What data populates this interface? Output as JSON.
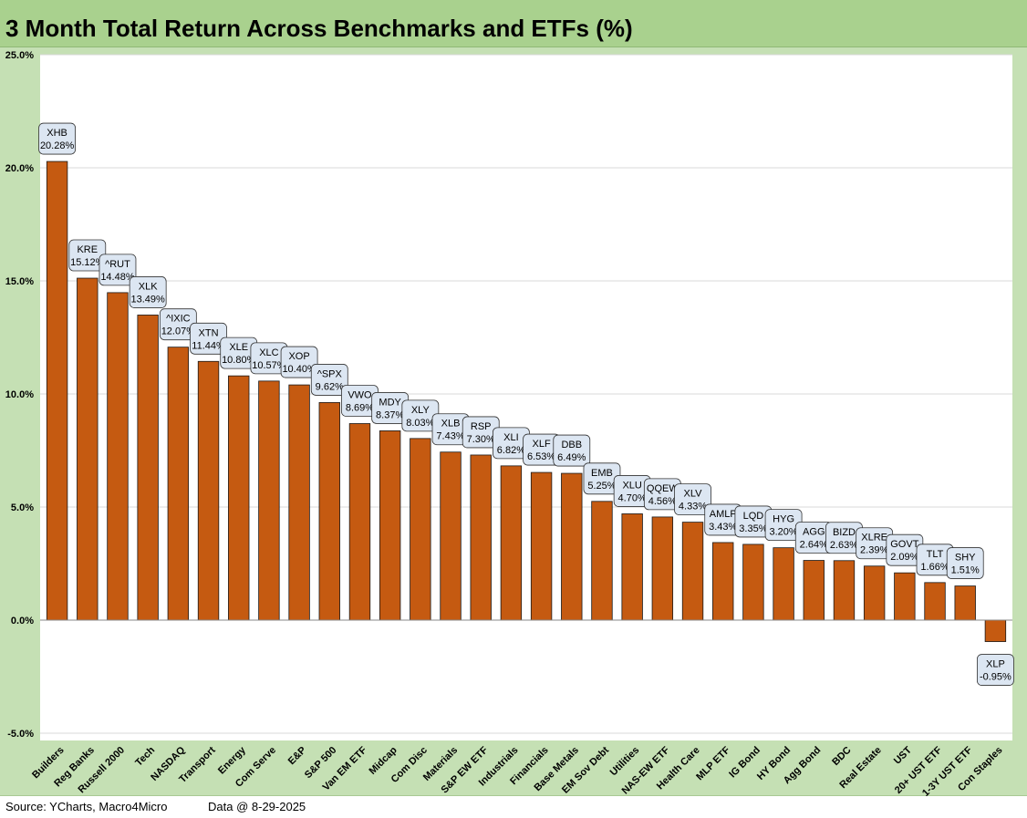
{
  "title": "3 Month Total Return Across Benchmarks and ETFs (%)",
  "footer": {
    "source": "Source: YCharts, Macro4Micro",
    "data_as_of": "Data @ 8-29-2025"
  },
  "colors": {
    "bar": "#c55a11",
    "bar_outline": "#1a1a1a",
    "plot_bg": "#ffffff",
    "frame_bg": "#c5e0b4",
    "title_bg": "#a9d18e",
    "label_bg": "#dce6f2",
    "gridline": "#d9d9d9"
  },
  "chart_data": {
    "type": "bar",
    "ylim": [
      -5,
      25
    ],
    "y_ticks": [
      -5,
      0,
      5,
      10,
      15,
      20,
      25
    ],
    "y_tick_labels": [
      "-5.0%",
      "0.0%",
      "5.0%",
      "10.0%",
      "15.0%",
      "20.0%",
      "25.0%"
    ],
    "grid": true,
    "categories": [
      "Builders",
      "Reg Banks",
      "Russell 2000",
      "Tech",
      "NASDAQ",
      "Transport",
      "Energy",
      "Com Serve",
      "E&P",
      "S&P 500",
      "Van EM ETF",
      "Midcap",
      "Com Disc",
      "Materials",
      "S&P EW ETF",
      "Industrials",
      "Financials",
      "Base Metals",
      "EM Sov Debt",
      "Utilities",
      "NAS-EW ETF",
      "Health Care",
      "MLP ETF",
      "IG Bond",
      "HY Bond",
      "Agg Bond",
      "BDC",
      "Real Estate",
      "UST",
      "20+ UST ETF",
      "1-3Y UST ETF",
      "Con Staples"
    ],
    "tickers": [
      "XHB",
      "KRE",
      "^RUT",
      "XLK",
      "^IXIC",
      "XTN",
      "XLE",
      "XLC",
      "XOP",
      "^SPX",
      "VWO",
      "MDY",
      "XLY",
      "XLB",
      "RSP",
      "XLI",
      "XLF",
      "DBB",
      "EMB",
      "XLU",
      "QQEW",
      "XLV",
      "AMLP",
      "LQD",
      "HYG",
      "AGG",
      "BIZD",
      "XLRE",
      "GOVT",
      "TLT",
      "SHY",
      "XLP"
    ],
    "values": [
      20.28,
      15.12,
      14.48,
      13.49,
      12.07,
      11.44,
      10.8,
      10.57,
      10.4,
      9.62,
      8.69,
      8.37,
      8.03,
      7.43,
      7.3,
      6.82,
      6.53,
      6.49,
      5.25,
      4.7,
      4.56,
      4.33,
      3.43,
      3.35,
      3.2,
      2.64,
      2.63,
      2.39,
      2.09,
      1.66,
      1.51,
      -0.95
    ],
    "value_labels": [
      "20.28%",
      "15.12%",
      "14.48%",
      "13.49%",
      "12.07%",
      "11.44%",
      "10.80%",
      "10.57%",
      "10.40%",
      "9.62%",
      "8.69%",
      "8.37%",
      "8.03%",
      "7.43%",
      "7.30%",
      "6.82%",
      "6.53%",
      "6.49%",
      "5.25%",
      "4.70%",
      "4.56%",
      "4.33%",
      "3.43%",
      "3.35%",
      "3.20%",
      "2.64%",
      "2.63%",
      "2.39%",
      "2.09%",
      "1.66%",
      "1.51%",
      "-0.95%"
    ]
  }
}
